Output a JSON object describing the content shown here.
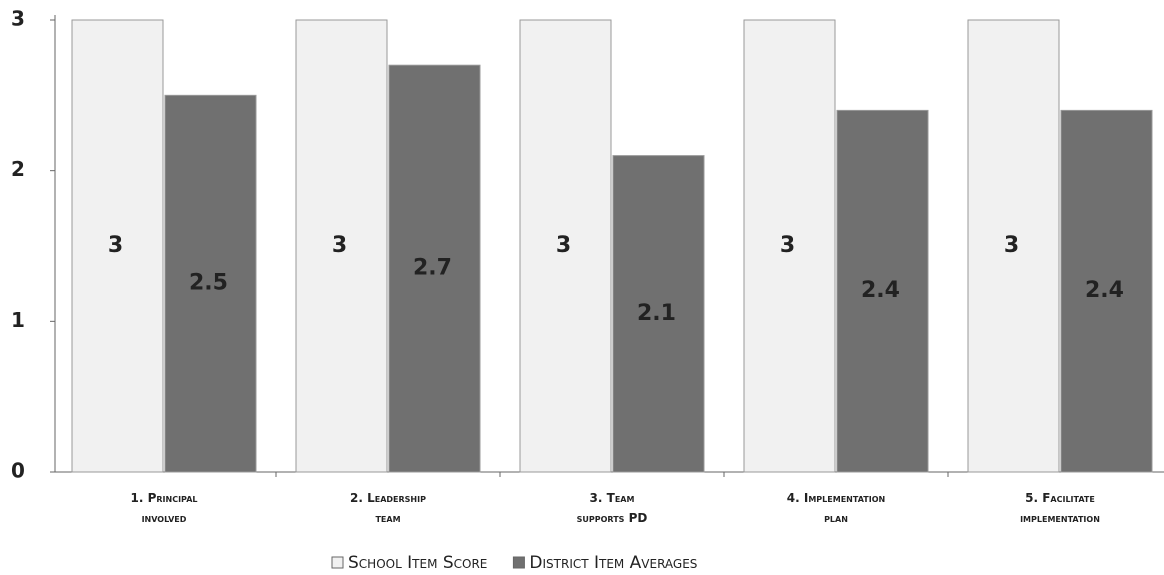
{
  "chart_data": {
    "type": "bar",
    "categories": [
      "1. Principal\ninvolved",
      "2. Leadership\nteam",
      "3. Team\nsupports PD",
      "4. Implementation\nplan",
      "5. Facilitate\nimplementation"
    ],
    "series": [
      {
        "name": "School Item Score",
        "color": "#f1f1f1",
        "values": [
          3,
          3,
          3,
          3,
          3
        ]
      },
      {
        "name": "District Item Averages",
        "color": "#707070",
        "values": [
          2.5,
          2.7,
          2.1,
          2.4,
          2.4
        ]
      }
    ],
    "ylim": [
      0,
      3
    ],
    "yticks": [
      0,
      1,
      2,
      3
    ],
    "grid": false,
    "legend": "bottom"
  }
}
